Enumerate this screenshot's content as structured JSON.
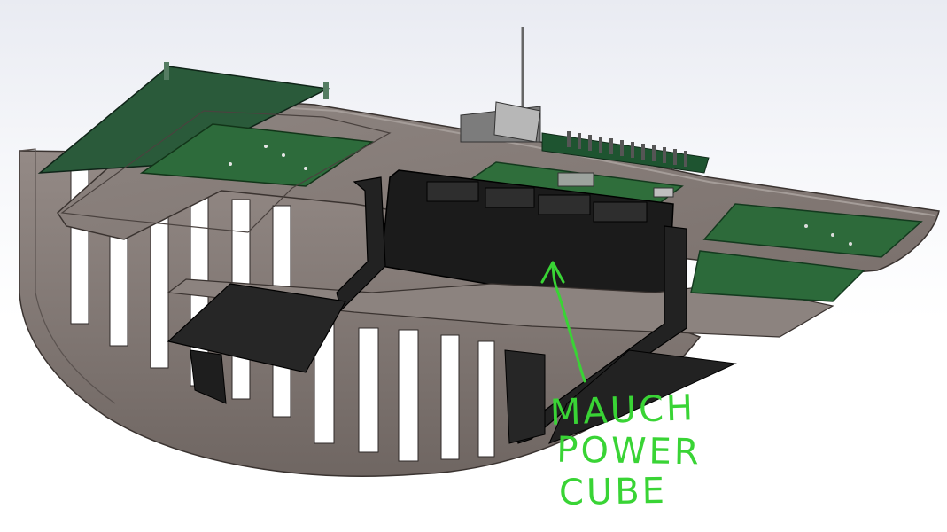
{
  "annotation": {
    "lines": [
      "MAUCH",
      "POWER",
      "CUBE"
    ],
    "color": "#39d435"
  },
  "model_colors": {
    "plate": "#8a7f7a",
    "pcb": "#1f5a2e",
    "bracket": "#222222"
  }
}
